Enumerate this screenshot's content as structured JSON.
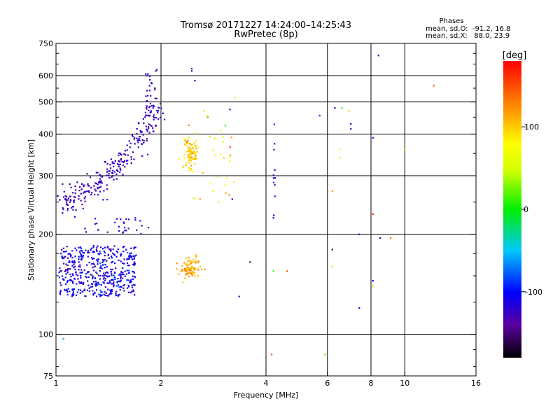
{
  "header": {
    "title_line1": "Tromsø 20171227 14:24:00–14:25:43",
    "title_line2": "RwPretec (8p)"
  },
  "stats": {
    "heading": "Phases",
    "line_o": "mean, sd,O:  -91.2, 16.8",
    "line_x": "mean, sd,X:   88.0, 23.9"
  },
  "colorbar": {
    "label": "[deg]",
    "range": [
      -180,
      180
    ],
    "ticks": [
      {
        "value": 100,
        "label": "100"
      },
      {
        "value": 0,
        "label": "0"
      },
      {
        "value": -100,
        "label": "-100"
      }
    ]
  },
  "chart_data": {
    "type": "scatter",
    "xlabel": "Frequency [MHz]",
    "ylabel": "Stationary phase Virtual Height [km]",
    "x_scale": "log",
    "y_scale": "log",
    "xlim": [
      1,
      16
    ],
    "ylim": [
      75,
      750
    ],
    "grid": true,
    "x_ticks": [
      {
        "value": 1,
        "label": "1"
      },
      {
        "value": 2,
        "label": "2"
      },
      {
        "value": 4,
        "label": "4"
      },
      {
        "value": 6,
        "label": "6"
      },
      {
        "value": 8,
        "label": "8"
      },
      {
        "value": 10,
        "label": "10"
      },
      {
        "value": 16,
        "label": "16"
      }
    ],
    "x_gridlines": [
      2,
      4,
      6,
      8,
      10
    ],
    "y_ticks": [
      {
        "value": 75,
        "label": "75"
      },
      {
        "value": 100,
        "label": "100"
      },
      {
        "value": 200,
        "label": "200"
      },
      {
        "value": 300,
        "label": "300"
      },
      {
        "value": 400,
        "label": "400"
      },
      {
        "value": 500,
        "label": "500"
      },
      {
        "value": 600,
        "label": "600"
      },
      {
        "value": 750,
        "label": "750"
      }
    ],
    "y_gridlines": [
      100,
      200,
      300,
      400,
      500,
      600
    ],
    "y_minor_ticks": [
      80,
      90,
      125,
      150,
      175,
      250,
      350,
      450,
      550,
      650,
      700
    ],
    "color_value": "phase_deg",
    "clusters": [
      {
        "x_range": [
          1.02,
          1.7
        ],
        "y_range": [
          130,
          185
        ],
        "n": 480,
        "phase_mean": -110,
        "phase_sd": 14,
        "x_dist": "uniform",
        "y_dist": "uniform"
      },
      {
        "x_range": [
          1.05,
          1.95
        ],
        "y_range": [
          255,
          470
        ],
        "n": 260,
        "phase_mean": -125,
        "phase_sd": 8,
        "x_dist": "branch",
        "y_dist": "branch"
      },
      {
        "x_range": [
          1.8,
          1.95
        ],
        "y_range": [
          450,
          640
        ],
        "n": 30,
        "phase_mean": -125,
        "phase_sd": 8,
        "x_dist": "uniform",
        "y_dist": "uniform"
      },
      {
        "x_range": [
          2.32,
          2.55
        ],
        "y_range": [
          320,
          380
        ],
        "n": 90,
        "phase_mean": 100,
        "phase_sd": 10,
        "x_dist": "normal",
        "y_dist": "normal"
      },
      {
        "x_range": [
          2.25,
          2.6
        ],
        "y_range": [
          148,
          170
        ],
        "n": 90,
        "phase_mean": 110,
        "phase_sd": 12,
        "x_dist": "normal",
        "y_dist": "normal"
      },
      {
        "x_range": [
          2.3,
          3.3
        ],
        "y_range": [
          250,
          470
        ],
        "n": 40,
        "phase_mean": 80,
        "phase_sd": 30,
        "x_dist": "uniform",
        "y_dist": "uniform"
      },
      {
        "x_range": [
          4.2,
          4.25
        ],
        "y_range": [
          200,
          440
        ],
        "n": 12,
        "phase_mean": -125,
        "phase_sd": 10,
        "x_dist": "uniform",
        "y_dist": "uniform"
      },
      {
        "x_range": [
          1.2,
          1.9
        ],
        "y_range": [
          200,
          225
        ],
        "n": 30,
        "phase_mean": -125,
        "phase_sd": 8,
        "x_dist": "uniform",
        "y_dist": "uniform"
      }
    ],
    "points": [
      {
        "x": 1.05,
        "y": 97,
        "phase": -60
      },
      {
        "x": 2.45,
        "y": 620,
        "phase": -125
      },
      {
        "x": 2.5,
        "y": 580,
        "phase": -125
      },
      {
        "x": 2.45,
        "y": 630,
        "phase": -125
      },
      {
        "x": 3.25,
        "y": 515,
        "phase": 100
      },
      {
        "x": 3.15,
        "y": 475,
        "phase": -125
      },
      {
        "x": 3.2,
        "y": 255,
        "phase": -150
      },
      {
        "x": 3.35,
        "y": 130,
        "phase": -130
      },
      {
        "x": 3.6,
        "y": 165,
        "phase": -150
      },
      {
        "x": 4.6,
        "y": 155,
        "phase": 150
      },
      {
        "x": 4.2,
        "y": 155,
        "phase": 10
      },
      {
        "x": 4.15,
        "y": 87,
        "phase": 150
      },
      {
        "x": 5.7,
        "y": 455,
        "phase": -120
      },
      {
        "x": 5.9,
        "y": 87,
        "phase": 20
      },
      {
        "x": 6.3,
        "y": 480,
        "phase": -120
      },
      {
        "x": 6.6,
        "y": 480,
        "phase": 10
      },
      {
        "x": 6.9,
        "y": 470,
        "phase": 100
      },
      {
        "x": 7.0,
        "y": 430,
        "phase": -120
      },
      {
        "x": 7.0,
        "y": 415,
        "phase": -120
      },
      {
        "x": 6.5,
        "y": 360,
        "phase": 60
      },
      {
        "x": 6.5,
        "y": 340,
        "phase": 40
      },
      {
        "x": 6.2,
        "y": 270,
        "phase": 120
      },
      {
        "x": 6.2,
        "y": 180,
        "phase": -175
      },
      {
        "x": 6.2,
        "y": 160,
        "phase": 30
      },
      {
        "x": 7.4,
        "y": 200,
        "phase": -120
      },
      {
        "x": 7.4,
        "y": 120,
        "phase": -120
      },
      {
        "x": 8.1,
        "y": 390,
        "phase": -120
      },
      {
        "x": 8.1,
        "y": 230,
        "phase": 170
      },
      {
        "x": 8.1,
        "y": 145,
        "phase": -100
      },
      {
        "x": 8.1,
        "y": 140,
        "phase": 40
      },
      {
        "x": 8.4,
        "y": 690,
        "phase": -120
      },
      {
        "x": 8.5,
        "y": 195,
        "phase": -100
      },
      {
        "x": 9.1,
        "y": 195,
        "phase": 130
      },
      {
        "x": 10,
        "y": 360,
        "phase": 100
      },
      {
        "x": 12.1,
        "y": 560,
        "phase": 150
      }
    ]
  }
}
